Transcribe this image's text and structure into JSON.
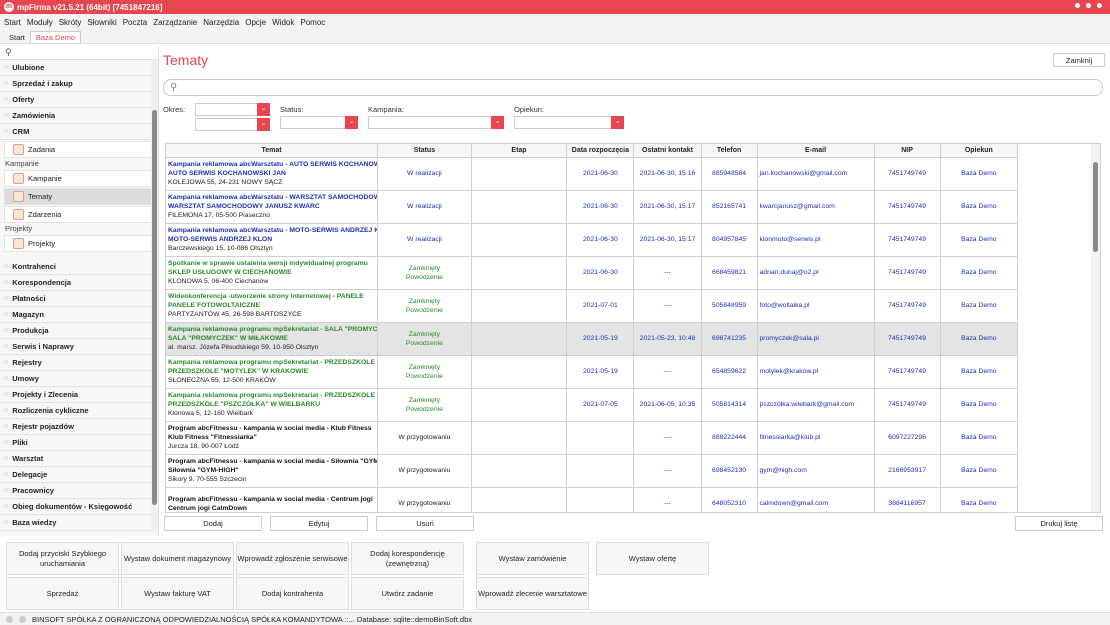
{
  "app": {
    "title": "mpFirma v21.5.21 (64bit) [7451847216]"
  },
  "menu": [
    "Start",
    "Moduły",
    "Skróty",
    "Słowniki",
    "Poczta",
    "Zarządzanie",
    "Narzędzia",
    "Opcje",
    "Widok",
    "Pomoc"
  ],
  "tabs": [
    "Start",
    "Baza Demo"
  ],
  "sidebar": {
    "sections_top": [
      "Ulubione",
      "Sprzedaż i zakup",
      "Oferty",
      "Zamówienia",
      "CRM"
    ],
    "crm_item": "Zadania",
    "group_kampanie": "Kampanie",
    "kampanie_items": [
      "Kampanie",
      "Tematy",
      "Zdarzenia"
    ],
    "group_projekty": "Projekty",
    "projekty_item": "Projekty",
    "sections_bottom": [
      "Kontrahenci",
      "Korespondencja",
      "Płatności",
      "Magazyn",
      "Produkcja",
      "Serwis i Naprawy",
      "Rejestry",
      "Umowy",
      "Projekty i Zlecenia",
      "Rozliczenia cykliczne",
      "Rejestr pojazdów",
      "Pliki",
      "Warsztat",
      "Delegacje",
      "Pracownicy",
      "Obieg dokumentów - Księgowość",
      "Baza wiedzy"
    ]
  },
  "main": {
    "title": "Tematy",
    "close_label": "Zamknij",
    "filters": {
      "okres": "Okres:",
      "status": "Status:",
      "kampania": "Kampania:",
      "opiekun": "Opiekun:"
    },
    "columns": [
      "Temat",
      "Status",
      "Etap",
      "Data rozpoczęcia",
      "Ostatni kontakt",
      "Telefon",
      "E-mail",
      "NIP",
      "Opiekun"
    ],
    "rows": [
      {
        "color": "blue",
        "l1": "Kampania reklamowa abcWarsztatu - AUTO SERWIS KOCHANOWSKI JAN",
        "l2": "AUTO SERWIS KOCHANOWSKI JAN",
        "l3": "KOLEJOWA 55, 24-231 NOWY SĄCZ",
        "status": "W realizacji",
        "status2": "",
        "etap": "",
        "data": "2021-06-30",
        "kontakt": "2021-06-30, 15:16",
        "tel": "885948584",
        "email": "jan.kochanowski@gmail.com",
        "nip": "7451749749",
        "opiekun": "Baza Demo"
      },
      {
        "color": "blue",
        "l1": "Kampania reklamowa abcWarsztatu - WARSZTAT SAMOCHODOWY JANUSZ KWARC",
        "l2": "WARSZTAT SAMOCHODOWY JANUSZ KWARC",
        "l3": "FILEMONA 17, 05-500 Piaseczno",
        "status": "W realizacji",
        "status2": "",
        "etap": "",
        "data": "2021-06-30",
        "kontakt": "2021-06-30, 15:17",
        "tel": "852165741",
        "email": "kwarcjanusz@gmail.com",
        "nip": "7451749749",
        "opiekun": "Baza Demo"
      },
      {
        "color": "blue",
        "l1": "Kampania reklamowa abcWarsztatu - MOTO-SERWIS ANDRZEJ KLON",
        "l2": "MOTO-SERWIS ANDRZEJ KLON",
        "l3": "Barczewskiego 15, 10-086 Olsztyn",
        "status": "W realizacji",
        "status2": "",
        "etap": "",
        "data": "2021-06-30",
        "kontakt": "2021-06-30, 15:17",
        "tel": "804957845",
        "email": "klonmoto@serwis.pl",
        "nip": "7451749749",
        "opiekun": "Baza Demo"
      },
      {
        "color": "green",
        "l1": "Spotkanie w sprawie ustalenia wersji indywidualnej programu",
        "l2": "SKLEP USŁUGOWY W CIECHANOWIE",
        "l3": "KLONOWA 5, 06-400 Ciechanów",
        "status": "Zamknięty",
        "status2": "Powodzenie",
        "etap": "",
        "data": "2021-06-30",
        "kontakt": "---",
        "tel": "668459821",
        "email": "adrian.dunaj@o2.pl",
        "nip": "7451749749",
        "opiekun": "Baza Demo"
      },
      {
        "color": "green",
        "l1": "Wideokonferencja -utworzenie strony internetowej - PANELE",
        "l2": "PANELE FOTOWOLTAICZNE",
        "l3": "PARTYZANTÓW 45, 26-598 BARTOSZYCE",
        "status": "Zamknięty",
        "status2": "Powodzenie",
        "etap": "",
        "data": "2021-07-01",
        "kontakt": "---",
        "tel": "505848959",
        "email": "foto@woltaika.pl",
        "nip": "7451749749",
        "opiekun": "Baza Demo"
      },
      {
        "color": "green",
        "l1": "Kampania reklamowa programu mpSekretariat - SALA \"PROMYCZEK\"",
        "l2": "SALA \"PROMYCZEK\" W MIŁAKOWIE",
        "l3": "al. marsz. Józefa Piłsudskiego 59, 10-950 Olsztyn",
        "status": "Zamknięty",
        "status2": "Powodzenie",
        "etap": "",
        "data": "2021-05-19",
        "kontakt": "2021-05-23, 10:48",
        "tel": "698741235",
        "email": "promyczek@sala.pl",
        "nip": "7451749749",
        "opiekun": "Baza Demo",
        "selected": true
      },
      {
        "color": "green",
        "l1": "Kampania reklamowa programu mpSekretariat - PRZEDSZKOLE",
        "l2": "PRZEDSZKOLE \"MOTYLEK\" W KRAKOWIE",
        "l3": "SŁONECZNA 55, 12-500 KRAKÓW",
        "status": "Zamknięty",
        "status2": "Powodzenie",
        "etap": "",
        "data": "2021-05-19",
        "kontakt": "---",
        "tel": "654859622",
        "email": "motylek@krakow.pl",
        "nip": "7451749749",
        "opiekun": "Baza Demo"
      },
      {
        "color": "green",
        "l1": "Kampania reklamowa programu mpSekretariat - PRZEDSZKOLE",
        "l2": "PRZEDSZKOLE \"PSZCZÓŁKA\" W WIELBARKU",
        "l3": "Klonowa 5, 12-160 Wielbark",
        "status": "Zamknięty",
        "status2": "Powodzenie",
        "etap": "",
        "data": "2021-07-05",
        "kontakt": "2021-06-05, 10:35",
        "tel": "505814314",
        "email": "pszczółka.wilebark@gmail.com",
        "nip": "7451749749",
        "opiekun": "Baza Demo"
      },
      {
        "color": "black",
        "l1": "Program abcFitnessu - kampania w social media - Klub Fitness",
        "l2": "Klub Fitness \"Fitnessiarka\"",
        "l3": "Jurcza 18, 90-007 Łódź",
        "status": "W przygotowaniu",
        "status2": "",
        "etap": "",
        "data": "",
        "kontakt": "---",
        "tel": "888222444",
        "email": "fitnessiarka@klub.pl",
        "nip": "6097227296",
        "opiekun": "Baza Demo"
      },
      {
        "color": "black",
        "l1": "Program abcFitnessu - kampania w social media - Siłownia \"GYM\"",
        "l2": "Siłownia \"GYM-HIGH\"",
        "l3": "Sikory 9, 70-555 Szczecin",
        "status": "W przygotowaniu",
        "status2": "",
        "etap": "",
        "data": "",
        "kontakt": "---",
        "tel": "698452130",
        "email": "gym@high.com",
        "nip": "2166953917",
        "opiekun": "Baza Demo"
      },
      {
        "color": "black",
        "l1": "Program abcFitnessu - kampania w social media - Centrum jogi",
        "l2": "Centrum jogi CalmDown",
        "l3": "",
        "status": "W przygotowaniu",
        "status2": "",
        "etap": "",
        "data": "",
        "kontakt": "---",
        "tel": "648052310",
        "email": "calmdown@gmail.com",
        "nip": "3684116957",
        "opiekun": "Baza Demo"
      }
    ],
    "buttons": {
      "add": "Dodaj",
      "edit": "Edytuj",
      "delete": "Usuń",
      "print": "Drukuj listę"
    }
  },
  "quick": [
    [
      "Dodaj przyciski Szybkiego uruchamiania",
      "Wystaw dokument magazynowy",
      "Wprowadź zgłoszenie serwisowe",
      "Dodaj korespondencję (zewnętrzną)",
      "Wystaw zamówienie",
      "Wystaw ofertę"
    ],
    [
      "Sprzedaż",
      "Wystaw fakturę VAT",
      "Dodaj kontrahenta",
      "Utwórz zadanie",
      "Wprowadź zlecenie warsztatowe"
    ]
  ],
  "status": {
    "text": "BINSOFT SPÓŁKA Z OGRANICZONĄ ODPOWIEDZIALNOŚCIĄ SPÓŁKA KOMANDYTOWA ::... Database: sqlite::demoBinSoft.dbx"
  },
  "colors": {
    "accent": "#e8464e",
    "blue_text": "#1f2fb4",
    "green_text": "#2a8a2a"
  }
}
